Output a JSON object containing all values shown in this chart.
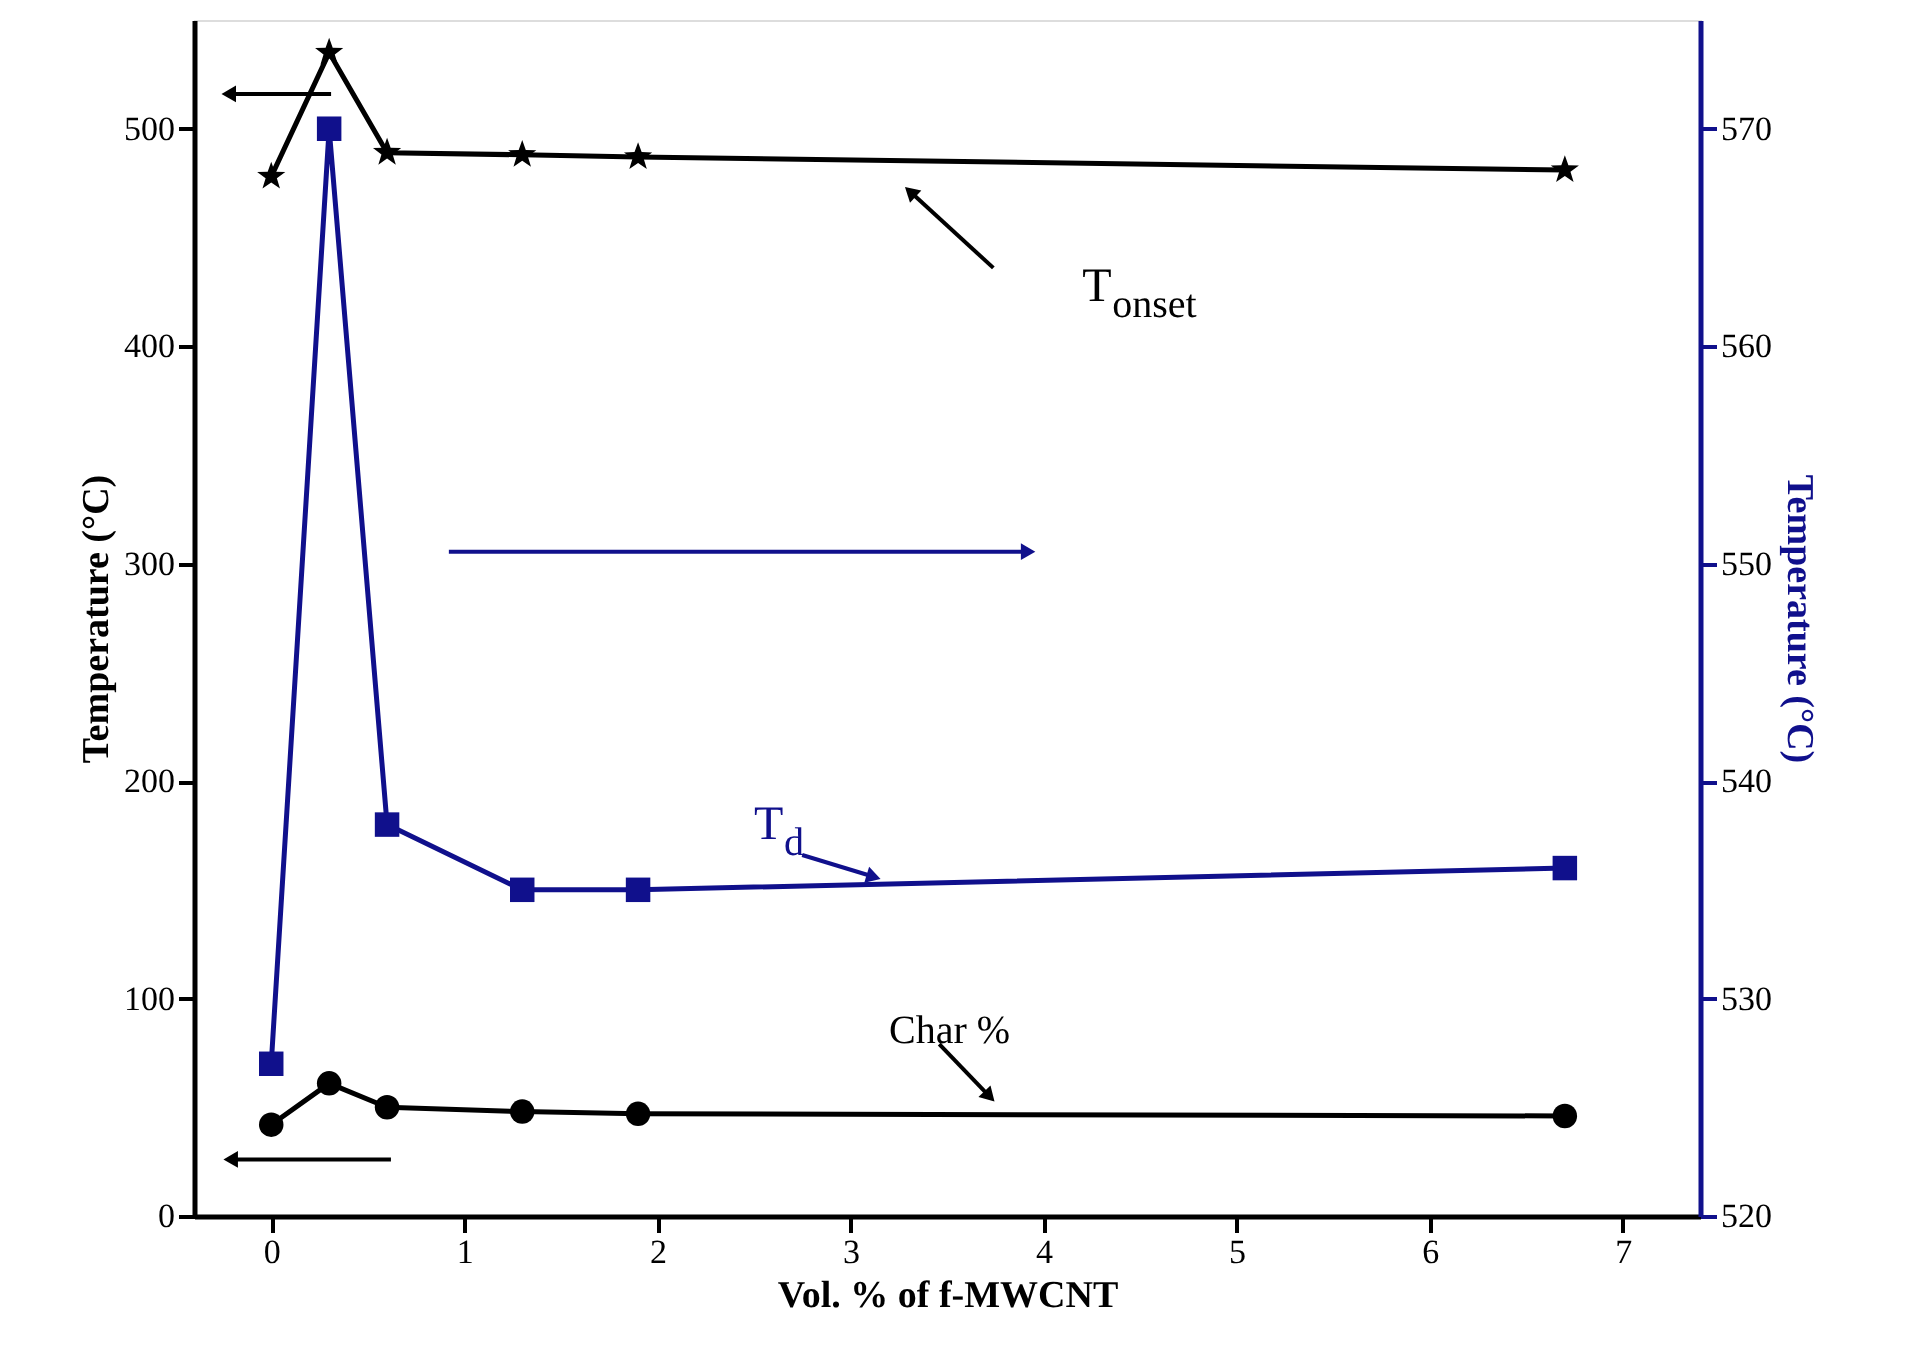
{
  "chart_data": {
    "type": "line",
    "xlabel": "Vol. % of f-MWCNT",
    "ylabel": "Temperature (°C)",
    "y2label": "Temperature (°C)",
    "x": [
      0,
      0.3,
      0.6,
      1.3,
      1.9,
      6.7
    ],
    "xlim": [
      -0.4,
      7.4
    ],
    "xticks": [
      0,
      1,
      2,
      3,
      4,
      5,
      6,
      7
    ],
    "ylim": [
      0,
      550
    ],
    "yticks": [
      0,
      100,
      200,
      300,
      400,
      500
    ],
    "y2lim": [
      520,
      575
    ],
    "y2ticks": [
      520,
      530,
      540,
      550,
      560,
      570
    ],
    "grid": false,
    "series": [
      {
        "name": "T$_{onset}$",
        "color": "#000000",
        "marker": "star",
        "values": [
          478,
          535,
          489,
          488,
          487,
          481
        ]
      },
      {
        "name": "T$_{d}$",
        "color": "#10108c",
        "marker": "square",
        "axis": "y2",
        "values": [
          527,
          570,
          538,
          535,
          535,
          536
        ]
      },
      {
        "name": "Char %",
        "color": "#000000",
        "marker": "circle",
        "values": [
          42,
          61,
          50,
          48,
          47,
          46
        ]
      }
    ]
  }
}
